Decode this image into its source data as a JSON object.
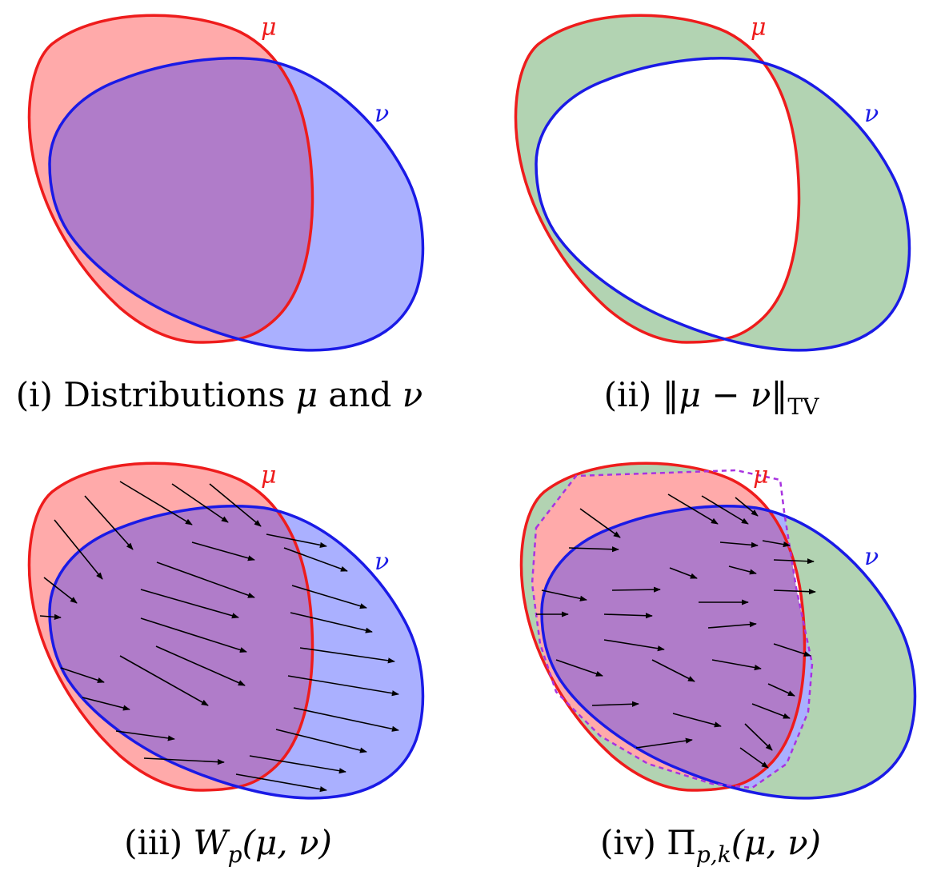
{
  "colors": {
    "mu": "#ee1c1c",
    "nu": "#1a1ae6",
    "mu_fill": "#ffaaaa",
    "nu_fill": "#aab0ff",
    "overlap_fill": "#b07cc9",
    "tv_fill": "#b2d3b2",
    "coupling_dash": "#a833e0",
    "arrow": "#000000"
  },
  "panels": [
    {
      "id": "i",
      "mu_label": "μ",
      "nu_label": "ν",
      "caption": {
        "prefix": "(i) Distributions ",
        "mu": "μ",
        "middle": " and ",
        "nu": "ν"
      }
    },
    {
      "id": "ii",
      "mu_label": "μ",
      "nu_label": "ν",
      "caption": {
        "prefix": "(ii) ",
        "body": "‖μ − ν‖",
        "sub": "TV"
      }
    },
    {
      "id": "iii",
      "mu_label": "μ",
      "nu_label": "ν",
      "caption": {
        "prefix": "(iii) ",
        "sym": "W",
        "sub": "p",
        "args": "(μ, ν)"
      }
    },
    {
      "id": "iv",
      "mu_label": "μ",
      "nu_label": "ν",
      "caption": {
        "prefix": "(iv) ",
        "sym": "Π",
        "sub": "p,k",
        "args": "(μ, ν)"
      }
    }
  ]
}
